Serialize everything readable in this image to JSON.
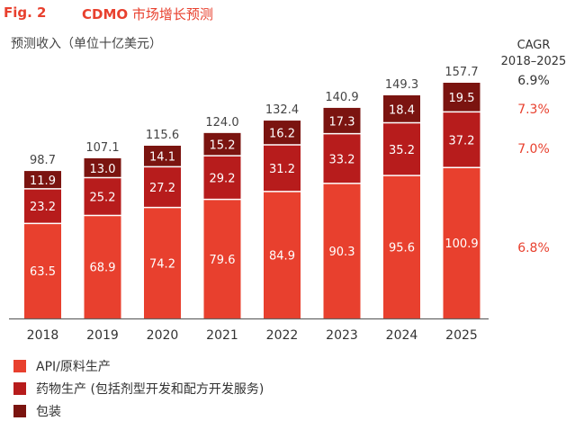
{
  "figure": {
    "label": "Fig. 2",
    "title_bold": "CDMO",
    "title_rest": " 市场增长预测",
    "unit": "预测收入（单位十亿美元）"
  },
  "cagr": {
    "header_line1": "CAGR",
    "header_line2": "2018–2025",
    "total": "6.9%",
    "packaging": "7.3%",
    "drug_product": "7.0%",
    "api": "6.8%",
    "colors": {
      "total": "#333333",
      "segment": "#e8402e"
    }
  },
  "legend": [
    {
      "label": "API/原料生产",
      "color": "#e8402e"
    },
    {
      "label": "药物生产 (包括剂型开发和配方开发服务)",
      "color": "#b71c1c"
    },
    {
      "label": "包装",
      "color": "#7b1410"
    }
  ],
  "chart_data": {
    "type": "bar",
    "stacked": true,
    "categories": [
      "2018",
      "2019",
      "2020",
      "2021",
      "2022",
      "2023",
      "2024",
      "2025"
    ],
    "series": [
      {
        "name": "API/原料生产",
        "color": "#e8402e",
        "values": [
          63.5,
          68.9,
          74.2,
          79.6,
          84.9,
          90.3,
          95.6,
          100.9
        ]
      },
      {
        "name": "药物生产 (包括剂型开发和配方开发服务)",
        "color": "#b71c1c",
        "values": [
          23.2,
          25.2,
          27.2,
          29.2,
          31.2,
          33.2,
          35.2,
          37.2
        ]
      },
      {
        "name": "包装",
        "color": "#7b1410",
        "values": [
          11.9,
          13.0,
          14.1,
          15.2,
          16.2,
          17.3,
          18.4,
          19.5
        ]
      }
    ],
    "totals": [
      98.7,
      107.1,
      115.6,
      124.0,
      132.4,
      140.9,
      149.3,
      157.7
    ],
    "ylim": [
      0,
      160
    ],
    "grid": false
  }
}
